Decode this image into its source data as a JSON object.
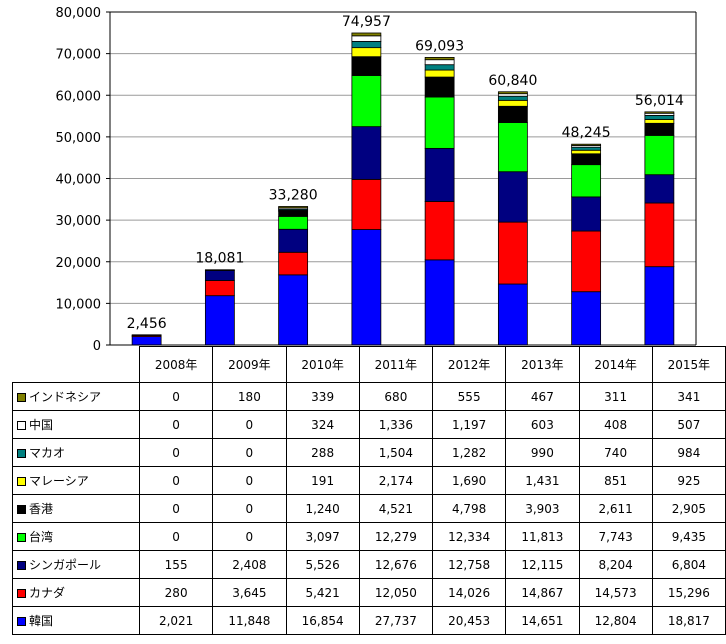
{
  "chart_data": {
    "type": "bar",
    "stacked": true,
    "categories": [
      "2008年",
      "2009年",
      "2010年",
      "2011年",
      "2012年",
      "2013年",
      "2014年",
      "2015年"
    ],
    "ylim": [
      0,
      80000
    ],
    "yticks": [
      "0",
      "10,000",
      "20,000",
      "30,000",
      "40,000",
      "50,000",
      "60,000",
      "70,000",
      "80,000"
    ],
    "grid": true,
    "totals": [
      "2,456",
      "18,081",
      "33,280",
      "74,957",
      "69,093",
      "60,840",
      "48,245",
      "56,014"
    ],
    "series": [
      {
        "name": "韓国",
        "color": "#0000ff",
        "values": [
          2021,
          11848,
          16854,
          27737,
          20453,
          14651,
          12804,
          18817
        ],
        "labels": [
          "2,021",
          "11,848",
          "16,854",
          "27,737",
          "20,453",
          "14,651",
          "12,804",
          "18,817"
        ]
      },
      {
        "name": "カナダ",
        "color": "#ff0000",
        "values": [
          280,
          3645,
          5421,
          12050,
          14026,
          14867,
          14573,
          15296
        ],
        "labels": [
          "280",
          "3,645",
          "5,421",
          "12,050",
          "14,026",
          "14,867",
          "14,573",
          "15,296"
        ]
      },
      {
        "name": "シンガポール",
        "color": "#000080",
        "values": [
          155,
          2408,
          5526,
          12676,
          12758,
          12115,
          8204,
          6804
        ],
        "labels": [
          "155",
          "2,408",
          "5,526",
          "12,676",
          "12,758",
          "12,115",
          "8,204",
          "6,804"
        ]
      },
      {
        "name": "台湾",
        "color": "#00ff00",
        "values": [
          0,
          0,
          3097,
          12279,
          12334,
          11813,
          7743,
          9435
        ],
        "labels": [
          "0",
          "0",
          "3,097",
          "12,279",
          "12,334",
          "11,813",
          "7,743",
          "9,435"
        ]
      },
      {
        "name": "香港",
        "color": "#000000",
        "values": [
          0,
          0,
          1240,
          4521,
          4798,
          3903,
          2611,
          2905
        ],
        "labels": [
          "0",
          "0",
          "1,240",
          "4,521",
          "4,798",
          "3,903",
          "2,611",
          "2,905"
        ]
      },
      {
        "name": "マレーシア",
        "color": "#ffff00",
        "values": [
          0,
          0,
          191,
          2174,
          1690,
          1431,
          851,
          925
        ],
        "labels": [
          "0",
          "0",
          "191",
          "2,174",
          "1,690",
          "1,431",
          "851",
          "925"
        ]
      },
      {
        "name": "マカオ",
        "color": "#008080",
        "values": [
          0,
          0,
          288,
          1504,
          1282,
          990,
          740,
          984
        ],
        "labels": [
          "0",
          "0",
          "288",
          "1,504",
          "1,282",
          "990",
          "740",
          "984"
        ]
      },
      {
        "name": "中国",
        "color": "#ffffff",
        "values": [
          0,
          0,
          324,
          1336,
          1197,
          603,
          408,
          507
        ],
        "labels": [
          "0",
          "0",
          "324",
          "1,336",
          "1,197",
          "603",
          "408",
          "507"
        ]
      },
      {
        "name": "インドネシア",
        "color": "#808000",
        "values": [
          0,
          180,
          339,
          680,
          555,
          467,
          311,
          341
        ],
        "labels": [
          "0",
          "180",
          "339",
          "680",
          "555",
          "467",
          "311",
          "341"
        ]
      }
    ]
  }
}
